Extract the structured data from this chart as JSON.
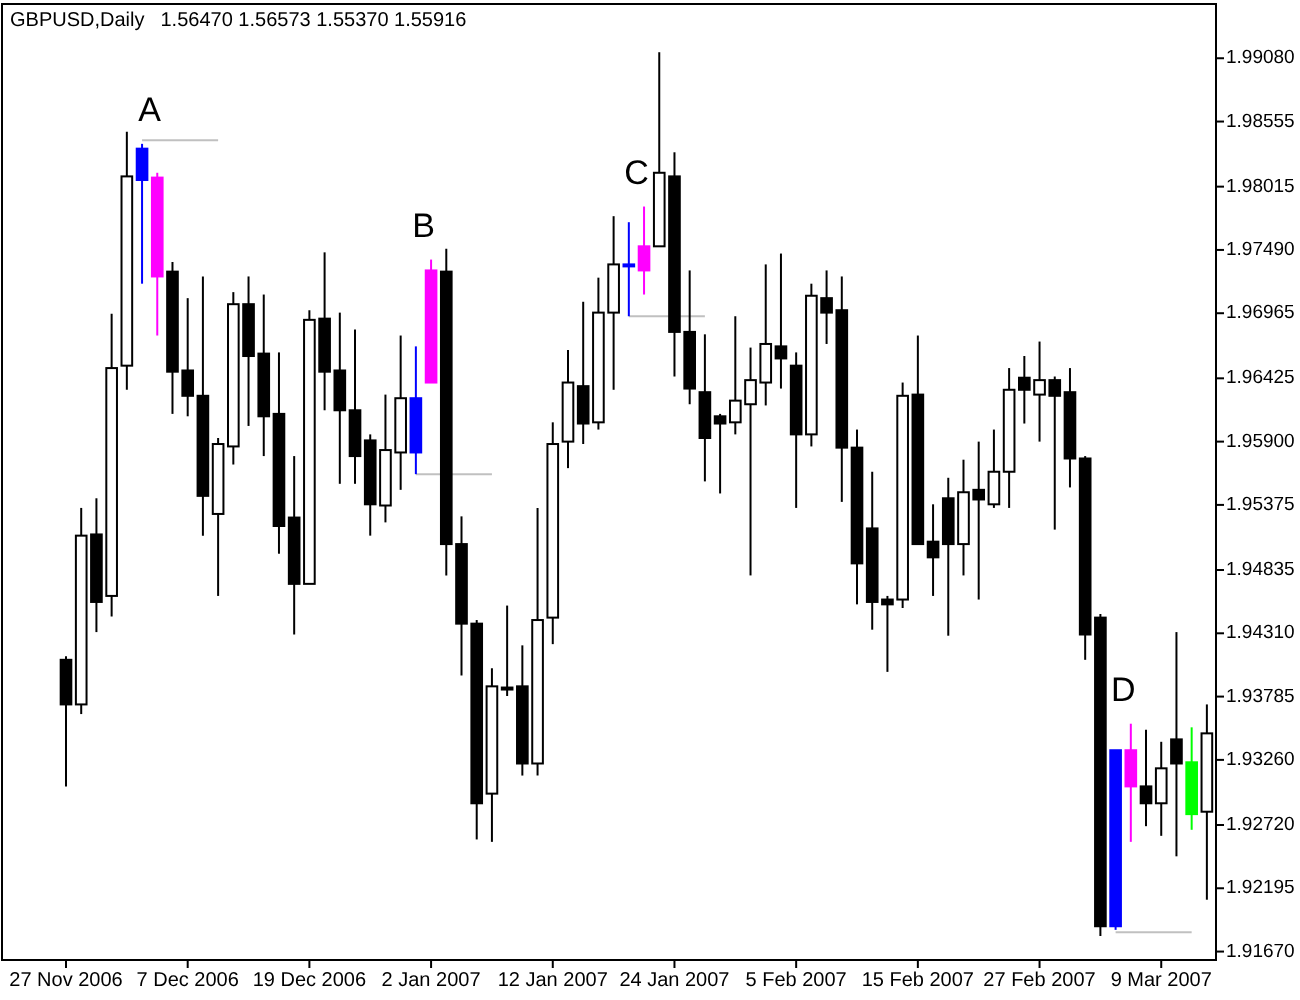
{
  "chart_data": {
    "type": "candlestick",
    "title": "GBPUSD,Daily",
    "subtitle": "1.56470 1.56573 1.55370 1.55916",
    "categories": [
      "27 Nov 2006",
      null,
      null,
      null,
      null,
      null,
      null,
      null,
      "7 Dec 2006",
      null,
      null,
      null,
      null,
      null,
      null,
      null,
      "19 Dec 2006",
      null,
      null,
      null,
      null,
      null,
      null,
      null,
      "2 Jan 2007",
      null,
      null,
      null,
      null,
      null,
      null,
      null,
      "12 Jan 2007",
      null,
      null,
      null,
      null,
      null,
      null,
      null,
      "24 Jan 2007",
      null,
      null,
      null,
      null,
      null,
      null,
      null,
      "5 Feb 2007",
      null,
      null,
      null,
      null,
      null,
      null,
      null,
      "15 Feb 2007",
      null,
      null,
      null,
      null,
      null,
      null,
      null,
      "27 Feb 2007",
      null,
      null,
      null,
      null,
      null,
      null,
      null,
      "9 Mar 2007",
      null,
      null,
      null
    ],
    "ohlc": [
      [
        1.9409,
        1.9412,
        1.9304,
        1.9372
      ],
      [
        1.9372,
        1.9535,
        1.9364,
        1.9512
      ],
      [
        1.9513,
        1.9543,
        1.9432,
        1.9457
      ],
      [
        1.9462,
        1.9696,
        1.9445,
        1.9651
      ],
      [
        1.9653,
        1.9847,
        1.9633,
        1.981
      ],
      [
        1.9807,
        1.9837,
        1.9721,
        1.9833
      ],
      [
        1.9809,
        1.9813,
        1.9678,
        1.9727
      ],
      [
        1.9731,
        1.9739,
        1.9613,
        1.9648
      ],
      [
        1.9649,
        1.9709,
        1.9611,
        1.9628
      ],
      [
        1.9628,
        1.9727,
        1.9512,
        1.9545
      ],
      [
        1.953,
        1.9593,
        1.9462,
        1.9588
      ],
      [
        1.9586,
        1.9714,
        1.9571,
        1.9704
      ],
      [
        1.9704,
        1.9727,
        1.9603,
        1.9661
      ],
      [
        1.9663,
        1.9712,
        1.9578,
        1.9611
      ],
      [
        1.9613,
        1.9664,
        1.9497,
        1.952
      ],
      [
        1.9527,
        1.9578,
        1.943,
        1.9472
      ],
      [
        1.9472,
        1.9699,
        1.9472,
        1.9691
      ],
      [
        1.9692,
        1.9747,
        1.9616,
        1.9648
      ],
      [
        1.9649,
        1.9697,
        1.9555,
        1.9616
      ],
      [
        1.9616,
        1.9683,
        1.9555,
        1.9578
      ],
      [
        1.9591,
        1.9596,
        1.9512,
        1.9538
      ],
      [
        1.9537,
        1.9629,
        1.9523,
        1.9583
      ],
      [
        1.9581,
        1.9678,
        1.955,
        1.9626
      ],
      [
        1.9626,
        1.9669,
        1.9563,
        1.9581
      ],
      [
        1.9639,
        1.9741,
        1.9639,
        1.9732
      ],
      [
        1.9731,
        1.975,
        1.9479,
        1.9505
      ],
      [
        1.9505,
        1.9528,
        1.9396,
        1.9439
      ],
      [
        1.9439,
        1.9442,
        1.926,
        1.929
      ],
      [
        1.9298,
        1.9402,
        1.9258,
        1.9387
      ],
      [
        1.9386,
        1.9454,
        1.9379,
        1.9386
      ],
      [
        1.9387,
        1.9421,
        1.9313,
        1.9323
      ],
      [
        1.9323,
        1.9535,
        1.9313,
        1.9442
      ],
      [
        1.9444,
        1.9606,
        1.9422,
        1.9588
      ],
      [
        1.959,
        1.9666,
        1.9568,
        1.9639
      ],
      [
        1.9636,
        1.9706,
        1.9588,
        1.9605
      ],
      [
        1.9606,
        1.9726,
        1.96,
        1.9697
      ],
      [
        1.9697,
        1.9777,
        1.9633,
        1.9737
      ],
      [
        1.9737,
        1.9772,
        1.9694,
        1.9737
      ],
      [
        1.9732,
        1.9785,
        1.9712,
        1.9752
      ],
      [
        1.9752,
        1.9913,
        1.9752,
        1.9813
      ],
      [
        1.981,
        1.983,
        1.9644,
        1.9681
      ],
      [
        1.9681,
        1.9732,
        1.9621,
        1.9634
      ],
      [
        1.9631,
        1.9679,
        1.9557,
        1.9593
      ],
      [
        1.9611,
        1.9613,
        1.9547,
        1.9605
      ],
      [
        1.9606,
        1.9694,
        1.9596,
        1.9624
      ],
      [
        1.9621,
        1.9668,
        1.9479,
        1.9641
      ],
      [
        1.9639,
        1.9737,
        1.962,
        1.9671
      ],
      [
        1.9669,
        1.9746,
        1.9634,
        1.9659
      ],
      [
        1.9653,
        1.9664,
        1.9535,
        1.9596
      ],
      [
        1.9596,
        1.9721,
        1.9586,
        1.9711
      ],
      [
        1.9709,
        1.9732,
        1.9671,
        1.9697
      ],
      [
        1.9699,
        1.9727,
        1.954,
        1.9585
      ],
      [
        1.9585,
        1.96,
        1.9455,
        1.9489
      ],
      [
        1.9518,
        1.9565,
        1.9434,
        1.9457
      ],
      [
        1.9459,
        1.9462,
        1.9399,
        1.9455
      ],
      [
        1.9459,
        1.9639,
        1.9452,
        1.9628
      ],
      [
        1.9629,
        1.9678,
        1.9505,
        1.9505
      ],
      [
        1.9507,
        1.9538,
        1.9462,
        1.9494
      ],
      [
        1.9543,
        1.956,
        1.9429,
        1.9505
      ],
      [
        1.9505,
        1.9575,
        1.9479,
        1.9548
      ],
      [
        1.955,
        1.959,
        1.9459,
        1.9542
      ],
      [
        1.9538,
        1.96,
        1.9535,
        1.9565
      ],
      [
        1.9565,
        1.9651,
        1.9535,
        1.9633
      ],
      [
        1.9643,
        1.9661,
        1.9605,
        1.9633
      ],
      [
        1.9629,
        1.9673,
        1.959,
        1.9641
      ],
      [
        1.9641,
        1.9644,
        1.9517,
        1.9628
      ],
      [
        1.9631,
        1.9651,
        1.9552,
        1.9576
      ],
      [
        1.9576,
        1.9578,
        1.9409,
        1.943
      ],
      [
        1.9444,
        1.9447,
        1.918,
        1.9188
      ],
      [
        1.9334,
        1.9334,
        1.9185,
        1.9188
      ],
      [
        1.9304,
        1.9356,
        1.9258,
        1.9334
      ],
      [
        1.9304,
        1.9351,
        1.9271,
        1.929
      ],
      [
        1.929,
        1.9341,
        1.9263,
        1.9319
      ],
      [
        1.9343,
        1.9432,
        1.9246,
        1.9323
      ],
      [
        1.9324,
        1.9353,
        1.9268,
        1.9281
      ],
      [
        1.9283,
        1.9372,
        1.921,
        1.9348
      ]
    ],
    "colors": [
      "#000000",
      "#ffffff",
      "#000000",
      "#ffffff",
      "#ffffff",
      "#0000ff",
      "#ff00ff",
      "#000000",
      "#000000",
      "#000000",
      "#ffffff",
      "#ffffff",
      "#000000",
      "#000000",
      "#000000",
      "#000000",
      "#ffffff",
      "#000000",
      "#000000",
      "#000000",
      "#000000",
      "#ffffff",
      "#ffffff",
      "#0000ff",
      "#ff00ff",
      "#000000",
      "#000000",
      "#000000",
      "#ffffff",
      "#ffffff",
      "#000000",
      "#ffffff",
      "#ffffff",
      "#ffffff",
      "#000000",
      "#ffffff",
      "#ffffff",
      "#0000ff",
      "#ff00ff",
      "#ffffff",
      "#000000",
      "#000000",
      "#000000",
      "#000000",
      "#ffffff",
      "#ffffff",
      "#ffffff",
      "#000000",
      "#000000",
      "#ffffff",
      "#000000",
      "#000000",
      "#000000",
      "#000000",
      "#000000",
      "#ffffff",
      "#000000",
      "#000000",
      "#000000",
      "#ffffff",
      "#000000",
      "#ffffff",
      "#ffffff",
      "#000000",
      "#ffffff",
      "#000000",
      "#000000",
      "#000000",
      "#000000",
      "#0000ff",
      "#ff00ff",
      "#000000",
      "#ffffff",
      "#000000",
      "#00ff00",
      "#ffffff"
    ],
    "series": [
      {
        "type": "line",
        "color": "#c0c0c0",
        "values": [
          null,
          null,
          null,
          null,
          null,
          1.984,
          1.984,
          1.984,
          1.984,
          1.984,
          1.984,
          null,
          null,
          null,
          null,
          null,
          null,
          null,
          null,
          null,
          null,
          null,
          null,
          null,
          null,
          null,
          null,
          null,
          null,
          null,
          null,
          null,
          null,
          null,
          null,
          null,
          null,
          null,
          null,
          null,
          null,
          null,
          null,
          null,
          null,
          null,
          null,
          null,
          null,
          null,
          null,
          null,
          null,
          null,
          null,
          null,
          null,
          null,
          null,
          null,
          null,
          null,
          null,
          null,
          null,
          null,
          null,
          null,
          null,
          null,
          null,
          null,
          null,
          null,
          null,
          null
        ]
      },
      {
        "type": "line",
        "color": "#c0c0c0",
        "values": [
          null,
          null,
          null,
          null,
          null,
          null,
          null,
          null,
          null,
          null,
          null,
          null,
          null,
          null,
          null,
          null,
          null,
          null,
          null,
          null,
          null,
          null,
          null,
          1.9563,
          1.9563,
          1.9563,
          1.9563,
          1.9563,
          1.9563,
          null,
          null,
          null,
          null,
          null,
          null,
          null,
          null,
          null,
          null,
          null,
          null,
          null,
          null,
          null,
          null,
          null,
          null,
          null,
          null,
          null,
          null,
          null,
          null,
          null,
          null,
          null,
          null,
          null,
          null,
          null,
          null,
          null,
          null,
          null,
          null,
          null,
          null,
          null,
          null,
          null,
          null,
          null,
          null,
          null,
          null,
          null
        ]
      },
      {
        "type": "line",
        "color": "#c0c0c0",
        "values": [
          null,
          null,
          null,
          null,
          null,
          null,
          null,
          null,
          null,
          null,
          null,
          null,
          null,
          null,
          null,
          null,
          null,
          null,
          null,
          null,
          null,
          null,
          null,
          null,
          null,
          null,
          null,
          null,
          null,
          null,
          null,
          null,
          null,
          null,
          null,
          null,
          null,
          1.9694,
          1.9694,
          1.9694,
          1.9694,
          1.9694,
          1.9694,
          null,
          null,
          null,
          null,
          null,
          null,
          null,
          null,
          null,
          null,
          null,
          null,
          null,
          null,
          null,
          null,
          null,
          null,
          null,
          null,
          null,
          null,
          null,
          null,
          null,
          null,
          null,
          null,
          null,
          null,
          null,
          null,
          null
        ]
      },
      {
        "type": "line",
        "color": "#c0c0c0",
        "values": [
          null,
          null,
          null,
          null,
          null,
          null,
          null,
          null,
          null,
          null,
          null,
          null,
          null,
          null,
          null,
          null,
          null,
          null,
          null,
          null,
          null,
          null,
          null,
          null,
          null,
          null,
          null,
          null,
          null,
          null,
          null,
          null,
          null,
          null,
          null,
          null,
          null,
          null,
          null,
          null,
          null,
          null,
          null,
          null,
          null,
          null,
          null,
          null,
          null,
          null,
          null,
          null,
          null,
          null,
          null,
          null,
          null,
          null,
          null,
          null,
          null,
          null,
          null,
          null,
          null,
          null,
          null,
          null,
          null,
          1.9183,
          1.9183,
          1.9183,
          1.9183,
          1.9183,
          1.9183,
          null
        ]
      }
    ],
    "annotations": [
      "A",
      "B",
      "C",
      "D"
    ],
    "ylim": [
      1.916,
      1.9953
    ],
    "yticks": [
      {
        "value": 1.9908,
        "label": "1.99080"
      },
      {
        "value": 1.98555,
        "label": "1.98555"
      },
      {
        "value": 1.98015,
        "label": "1.98015"
      },
      {
        "value": 1.9749,
        "label": "1.97490"
      },
      {
        "value": 1.96965,
        "label": "1.96965"
      },
      {
        "value": 1.96425,
        "label": "1.96425"
      },
      {
        "value": 1.959,
        "label": "1.95900"
      },
      {
        "value": 1.95375,
        "label": "1.95375"
      },
      {
        "value": 1.94835,
        "label": "1.94835"
      },
      {
        "value": 1.9431,
        "label": "1.94310"
      },
      {
        "value": 1.93785,
        "label": "1.93785"
      },
      {
        "value": 1.9326,
        "label": "1.93260"
      },
      {
        "value": 1.9272,
        "label": "1.92720"
      },
      {
        "value": 1.92195,
        "label": "1.92195"
      },
      {
        "value": 1.9167,
        "label": "1.91670"
      }
    ],
    "grid": false
  }
}
